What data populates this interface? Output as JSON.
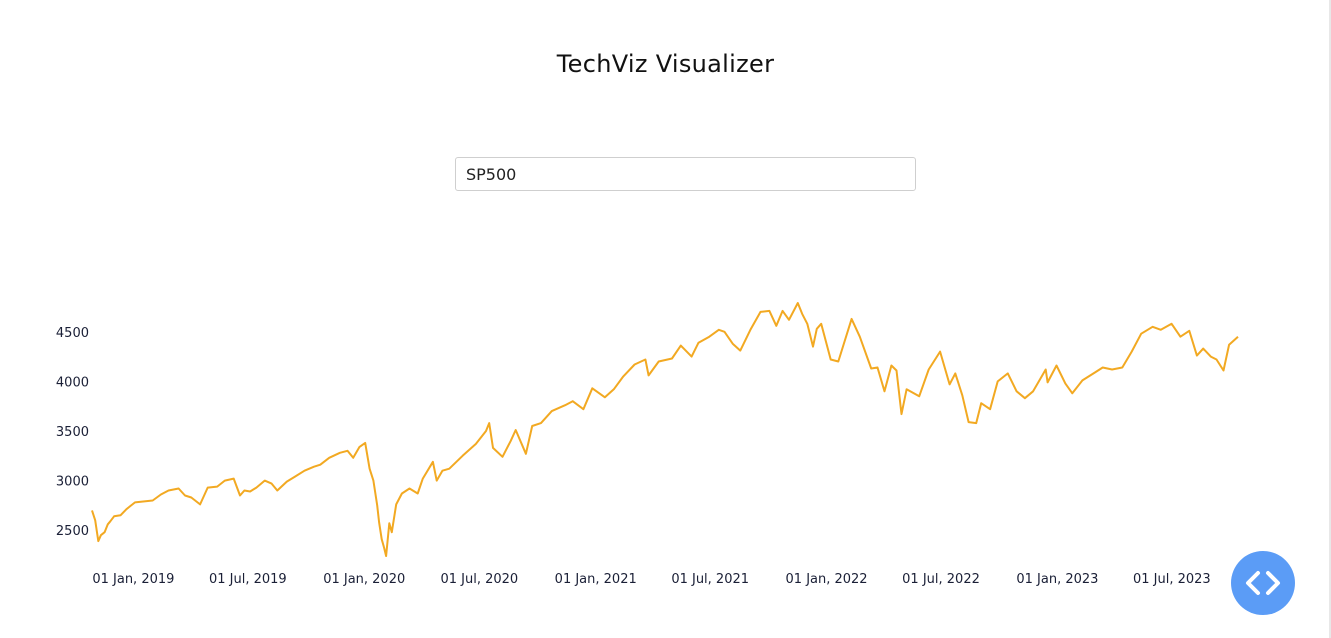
{
  "app": {
    "title": "TechViz Visualizer"
  },
  "search": {
    "value": "SP500"
  },
  "code_button": {
    "icon": "code-icon",
    "color": "#5b9cf6"
  },
  "chart_data": {
    "type": "line",
    "title": "",
    "xlabel": "",
    "ylabel": "",
    "grid": false,
    "legend": false,
    "line_color": "#f2a922",
    "x_ticks": [
      "01 Jan, 2019",
      "01 Jul, 2019",
      "01 Jan, 2020",
      "01 Jul, 2020",
      "01 Jan, 2021",
      "01 Jul, 2021",
      "01 Jan, 2022",
      "01 Jul, 2022",
      "01 Jan, 2023",
      "01 Jul, 2023"
    ],
    "y_ticks": [
      2500,
      3000,
      3500,
      4000,
      4500
    ],
    "xlim": [
      "2018-12-14",
      "2023-11-30"
    ],
    "ylim": [
      2200,
      4820
    ],
    "series": [
      {
        "x": [
          "2018-12-14",
          "2018-12-19",
          "2018-12-24",
          "2018-12-28",
          "2019-01-03",
          "2019-01-08",
          "2019-01-12",
          "2019-01-18",
          "2019-01-28",
          "2019-02-06",
          "2019-02-12",
          "2019-02-20",
          "2019-03-05",
          "2019-03-20",
          "2019-04-02",
          "2019-04-14",
          "2019-04-30",
          "2019-05-10",
          "2019-05-20",
          "2019-06-03",
          "2019-06-15",
          "2019-06-30",
          "2019-07-12",
          "2019-07-26",
          "2019-08-05",
          "2019-08-12",
          "2019-08-21",
          "2019-08-31",
          "2019-09-13",
          "2019-09-24",
          "2019-10-03",
          "2019-10-18",
          "2019-10-31",
          "2019-11-15",
          "2019-11-30",
          "2019-12-10",
          "2019-12-24",
          "2020-01-10",
          "2020-01-22",
          "2020-01-31",
          "2020-02-10",
          "2020-02-19",
          "2020-02-26",
          "2020-03-03",
          "2020-03-09",
          "2020-03-12",
          "2020-03-16",
          "2020-03-20",
          "2020-03-23",
          "2020-03-28",
          "2020-04-01",
          "2020-04-08",
          "2020-04-17",
          "2020-04-29",
          "2020-05-12",
          "2020-05-20",
          "2020-06-05",
          "2020-06-11",
          "2020-06-20",
          "2020-07-01",
          "2020-07-22",
          "2020-08-12",
          "2020-08-28",
          "2020-09-02",
          "2020-09-08",
          "2020-09-23",
          "2020-10-06",
          "2020-10-14",
          "2020-10-30",
          "2020-11-09",
          "2020-11-23",
          "2020-12-10",
          "2020-12-31",
          "2021-01-12",
          "2021-01-29",
          "2021-02-12",
          "2021-03-04",
          "2021-03-18",
          "2021-04-02",
          "2021-04-20",
          "2021-05-07",
          "2021-05-12",
          "2021-05-28",
          "2021-06-18",
          "2021-07-02",
          "2021-07-19",
          "2021-07-30",
          "2021-08-16",
          "2021-08-31",
          "2021-09-09",
          "2021-09-22",
          "2021-10-04",
          "2021-10-20",
          "2021-11-05",
          "2021-11-19",
          "2021-11-30",
          "2021-12-10",
          "2021-12-20",
          "2022-01-03",
          "2022-01-10",
          "2022-01-18",
          "2022-01-27",
          "2022-02-02",
          "2022-02-09",
          "2022-02-24",
          "2022-03-08",
          "2022-03-29",
          "2022-04-11",
          "2022-04-29",
          "2022-05-09",
          "2022-05-20",
          "2022-05-31",
          "2022-06-08",
          "2022-06-16",
          "2022-06-24",
          "2022-07-14",
          "2022-07-29",
          "2022-08-16",
          "2022-08-31",
          "2022-09-09",
          "2022-09-20",
          "2022-09-30",
          "2022-10-12",
          "2022-10-20",
          "2022-11-03",
          "2022-11-15",
          "2022-12-01",
          "2022-12-15",
          "2022-12-28",
          "2023-01-10",
          "2023-01-30",
          "2023-02-02",
          "2023-02-16",
          "2023-03-02",
          "2023-03-13",
          "2023-03-29",
          "2023-04-18",
          "2023-04-30",
          "2023-05-15",
          "2023-05-31",
          "2023-06-15",
          "2023-06-30",
          "2023-07-18",
          "2023-07-31",
          "2023-08-17",
          "2023-08-31",
          "2023-09-14",
          "2023-09-26",
          "2023-10-06",
          "2023-10-18",
          "2023-10-27",
          "2023-11-07",
          "2023-11-16",
          "2023-11-30"
        ],
        "y": [
          2700,
          2600,
          2390,
          2450,
          2480,
          2560,
          2590,
          2640,
          2650,
          2710,
          2740,
          2780,
          2790,
          2800,
          2860,
          2900,
          2920,
          2850,
          2830,
          2760,
          2930,
          2940,
          3000,
          3020,
          2850,
          2900,
          2890,
          2930,
          3000,
          2970,
          2900,
          2990,
          3040,
          3100,
          3140,
          3160,
          3230,
          3280,
          3300,
          3230,
          3340,
          3380,
          3120,
          3000,
          2750,
          2580,
          2410,
          2320,
          2240,
          2570,
          2480,
          2760,
          2870,
          2920,
          2870,
          3020,
          3190,
          3000,
          3100,
          3120,
          3250,
          3370,
          3500,
          3580,
          3330,
          3240,
          3400,
          3510,
          3270,
          3550,
          3580,
          3700,
          3760,
          3800,
          3720,
          3930,
          3840,
          3920,
          4050,
          4170,
          4220,
          4060,
          4200,
          4230,
          4360,
          4250,
          4390,
          4450,
          4520,
          4500,
          4380,
          4310,
          4520,
          4700,
          4710,
          4560,
          4710,
          4620,
          4790,
          4680,
          4580,
          4350,
          4530,
          4580,
          4220,
          4200,
          4630,
          4450,
          4130,
          4140,
          3900,
          4160,
          4110,
          3670,
          3920,
          3850,
          4120,
          4300,
          3970,
          4080,
          3860,
          3590,
          3580,
          3780,
          3720,
          4000,
          4080,
          3900,
          3830,
          3900,
          4120,
          3990,
          4160,
          3980,
          3880,
          4010,
          4090,
          4140,
          4120,
          4140,
          4300,
          4480,
          4550,
          4520,
          4580,
          4450,
          4510,
          4260,
          4330,
          4250,
          4220,
          4110,
          4370,
          4450
        ]
      }
    ]
  }
}
